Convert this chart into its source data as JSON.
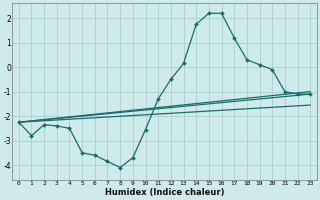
{
  "xlabel": "Humidex (Indice chaleur)",
  "xlim": [
    -0.5,
    23.5
  ],
  "ylim": [
    -4.6,
    2.6
  ],
  "yticks": [
    -4,
    -3,
    -2,
    -1,
    0,
    1,
    2
  ],
  "xticks": [
    0,
    1,
    2,
    3,
    4,
    5,
    6,
    7,
    8,
    9,
    10,
    11,
    12,
    13,
    14,
    15,
    16,
    17,
    18,
    19,
    20,
    21,
    22,
    23
  ],
  "background_color": "#ceeaea",
  "grid_color": "#aacfcf",
  "line_color": "#1a6b6b",
  "line1_x": [
    0,
    1,
    2,
    3,
    4,
    5,
    6,
    7,
    8,
    9,
    10,
    11,
    12,
    13,
    14,
    15,
    16,
    17,
    18,
    19,
    20,
    21,
    22,
    23
  ],
  "line1_y": [
    -2.25,
    -2.8,
    -2.35,
    -2.4,
    -2.5,
    -3.5,
    -3.6,
    -3.85,
    -4.1,
    -3.7,
    -2.55,
    -1.3,
    -0.5,
    0.15,
    1.75,
    2.2,
    2.2,
    1.2,
    0.3,
    0.1,
    -0.1,
    -1.0,
    -1.1,
    -1.1
  ],
  "line2_x": [
    0,
    23
  ],
  "line2_y": [
    -2.25,
    -1.0
  ],
  "line3_x": [
    0,
    23
  ],
  "line3_y": [
    -2.25,
    -1.1
  ],
  "line4_x": [
    0,
    23
  ],
  "line4_y": [
    -2.25,
    -1.55
  ]
}
